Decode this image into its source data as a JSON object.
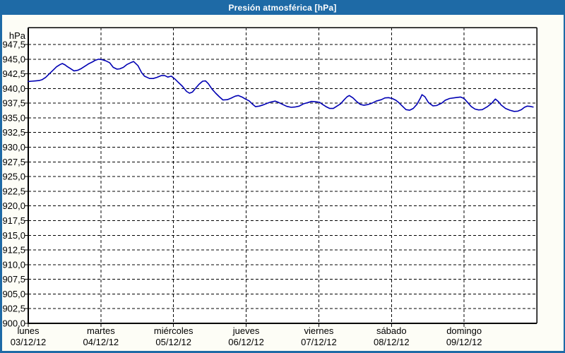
{
  "window": {
    "title": "Presión atmosférica [hPa]"
  },
  "colors": {
    "titlebar_bg": "#1e6aa6",
    "titlebar_text": "#ffffff",
    "frame_border": "#1e6aa6",
    "content_bg": "#fdfdf6",
    "plot_bg": "#ffffff",
    "grid": "#000000",
    "axis": "#000000",
    "label_text": "#000000",
    "line": "#0000b3"
  },
  "chart_data": {
    "type": "line",
    "title": "Presión atmosférica [hPa]",
    "unit_label": "hPa",
    "ylim": [
      900.0,
      947.5
    ],
    "y_tick_step": 2.5,
    "y_ticks": [
      947.5,
      945.0,
      942.5,
      940.0,
      937.5,
      935.0,
      932.5,
      930.0,
      927.5,
      925.0,
      922.5,
      920.0,
      917.5,
      915.0,
      912.5,
      910.0,
      907.5,
      905.0,
      902.5,
      900.0
    ],
    "y_tick_labels": [
      "947,5",
      "945,0",
      "942,5",
      "940,0",
      "937,5",
      "935,0",
      "932,5",
      "930,0",
      "927,5",
      "925,0",
      "922,5",
      "920,0",
      "917,5",
      "915,0",
      "912,5",
      "910,0",
      "907,5",
      "905,0",
      "902,5",
      "900,0"
    ],
    "grid": "dashed",
    "legend": "none",
    "xlim_days": [
      0,
      7
    ],
    "x_days": [
      {
        "name": "lunes",
        "date": "03/12/12"
      },
      {
        "name": "martes",
        "date": "04/12/12"
      },
      {
        "name": "miércoles",
        "date": "05/12/12"
      },
      {
        "name": "jueves",
        "date": "06/12/12"
      },
      {
        "name": "viernes",
        "date": "07/12/12"
      },
      {
        "name": "sábado",
        "date": "08/12/12"
      },
      {
        "name": "domingo",
        "date": "09/12/12"
      }
    ],
    "series": [
      {
        "color": "#0000b3",
        "points_day_hpa": [
          [
            0.0,
            941.2
          ],
          [
            0.05,
            941.25
          ],
          [
            0.1,
            941.3
          ],
          [
            0.15,
            941.35
          ],
          [
            0.19,
            941.5
          ],
          [
            0.24,
            941.9
          ],
          [
            0.29,
            942.5
          ],
          [
            0.34,
            943.1
          ],
          [
            0.39,
            943.7
          ],
          [
            0.44,
            944.1
          ],
          [
            0.47,
            944.25
          ],
          [
            0.51,
            944.0
          ],
          [
            0.53,
            943.8
          ],
          [
            0.58,
            943.4
          ],
          [
            0.63,
            943.0
          ],
          [
            0.68,
            943.1
          ],
          [
            0.73,
            943.4
          ],
          [
            0.78,
            943.8
          ],
          [
            0.83,
            944.2
          ],
          [
            0.88,
            944.5
          ],
          [
            0.92,
            944.8
          ],
          [
            0.97,
            945.0
          ],
          [
            1.02,
            944.9
          ],
          [
            1.07,
            944.7
          ],
          [
            1.12,
            944.4
          ],
          [
            1.17,
            943.6
          ],
          [
            1.22,
            943.3
          ],
          [
            1.26,
            943.35
          ],
          [
            1.31,
            943.6
          ],
          [
            1.36,
            944.1
          ],
          [
            1.41,
            944.4
          ],
          [
            1.45,
            944.6
          ],
          [
            1.51,
            943.9
          ],
          [
            1.56,
            942.7
          ],
          [
            1.6,
            942.1
          ],
          [
            1.67,
            941.7
          ],
          [
            1.72,
            941.7
          ],
          [
            1.77,
            941.9
          ],
          [
            1.83,
            942.2
          ],
          [
            1.88,
            942.2
          ],
          [
            1.92,
            941.95
          ],
          [
            1.97,
            942.1
          ],
          [
            2.02,
            941.6
          ],
          [
            2.07,
            941.0
          ],
          [
            2.12,
            940.4
          ],
          [
            2.18,
            939.5
          ],
          [
            2.22,
            939.2
          ],
          [
            2.26,
            939.4
          ],
          [
            2.3,
            940.0
          ],
          [
            2.35,
            940.7
          ],
          [
            2.4,
            941.25
          ],
          [
            2.44,
            941.3
          ],
          [
            2.48,
            940.8
          ],
          [
            2.53,
            939.9
          ],
          [
            2.58,
            939.2
          ],
          [
            2.63,
            938.6
          ],
          [
            2.68,
            938.05
          ],
          [
            2.74,
            938.1
          ],
          [
            2.79,
            938.35
          ],
          [
            2.85,
            938.7
          ],
          [
            2.89,
            938.8
          ],
          [
            2.95,
            938.5
          ],
          [
            2.99,
            938.2
          ],
          [
            3.04,
            937.9
          ],
          [
            3.09,
            937.3
          ],
          [
            3.13,
            936.9
          ],
          [
            3.18,
            937.0
          ],
          [
            3.23,
            937.2
          ],
          [
            3.29,
            937.5
          ],
          [
            3.34,
            937.7
          ],
          [
            3.4,
            937.85
          ],
          [
            3.45,
            937.6
          ],
          [
            3.5,
            937.3
          ],
          [
            3.56,
            936.95
          ],
          [
            3.62,
            936.8
          ],
          [
            3.67,
            936.85
          ],
          [
            3.73,
            937.0
          ],
          [
            3.79,
            937.4
          ],
          [
            3.85,
            937.6
          ],
          [
            3.9,
            937.8
          ],
          [
            3.95,
            937.75
          ],
          [
            4.01,
            937.65
          ],
          [
            4.05,
            937.3
          ],
          [
            4.1,
            936.9
          ],
          [
            4.15,
            936.6
          ],
          [
            4.2,
            936.6
          ],
          [
            4.25,
            937.0
          ],
          [
            4.3,
            937.4
          ],
          [
            4.35,
            938.1
          ],
          [
            4.39,
            938.6
          ],
          [
            4.42,
            938.8
          ],
          [
            4.47,
            938.4
          ],
          [
            4.52,
            937.8
          ],
          [
            4.57,
            937.3
          ],
          [
            4.62,
            937.15
          ],
          [
            4.67,
            937.25
          ],
          [
            4.73,
            937.5
          ],
          [
            4.79,
            937.85
          ],
          [
            4.86,
            938.1
          ],
          [
            4.91,
            938.4
          ],
          [
            4.96,
            938.45
          ],
          [
            5.01,
            938.3
          ],
          [
            5.06,
            938.0
          ],
          [
            5.1,
            937.6
          ],
          [
            5.15,
            937.0
          ],
          [
            5.2,
            936.4
          ],
          [
            5.25,
            936.3
          ],
          [
            5.3,
            936.6
          ],
          [
            5.35,
            937.3
          ],
          [
            5.4,
            938.4
          ],
          [
            5.42,
            938.95
          ],
          [
            5.46,
            938.6
          ],
          [
            5.51,
            937.6
          ],
          [
            5.57,
            937.05
          ],
          [
            5.62,
            937.1
          ],
          [
            5.69,
            937.5
          ],
          [
            5.74,
            938.0
          ],
          [
            5.8,
            938.3
          ],
          [
            5.88,
            938.45
          ],
          [
            5.95,
            938.55
          ],
          [
            6.0,
            938.3
          ],
          [
            6.05,
            937.6
          ],
          [
            6.1,
            936.9
          ],
          [
            6.15,
            936.5
          ],
          [
            6.2,
            936.35
          ],
          [
            6.25,
            936.4
          ],
          [
            6.32,
            936.9
          ],
          [
            6.38,
            937.5
          ],
          [
            6.43,
            938.2
          ],
          [
            6.47,
            937.8
          ],
          [
            6.51,
            937.2
          ],
          [
            6.57,
            936.6
          ],
          [
            6.63,
            936.3
          ],
          [
            6.69,
            936.1
          ],
          [
            6.74,
            936.15
          ],
          [
            6.79,
            936.4
          ],
          [
            6.83,
            936.8
          ],
          [
            6.87,
            937.0
          ],
          [
            6.91,
            936.95
          ],
          [
            6.95,
            936.85
          ]
        ]
      }
    ]
  }
}
